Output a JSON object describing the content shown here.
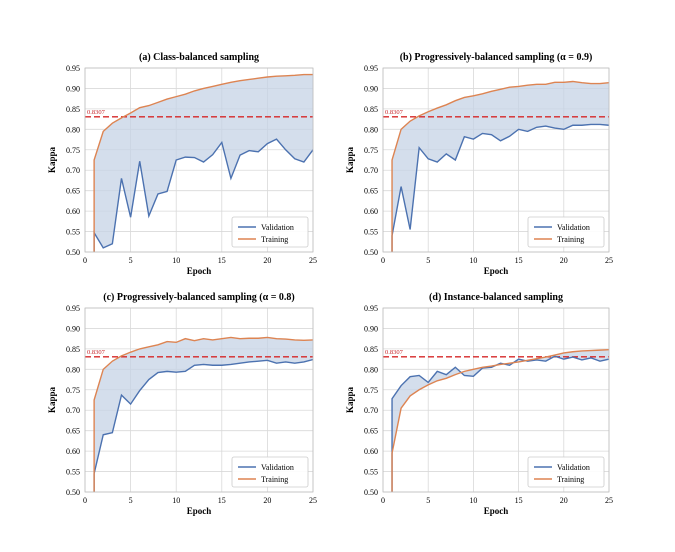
{
  "colors": {
    "validation": "#4c72b0",
    "training": "#dd8452",
    "reference": "#d62728",
    "fill": "#c5d3e6",
    "grid": "#d9d9d9"
  },
  "chart_data": [
    {
      "type": "line",
      "title": "(a) Class-balanced sampling",
      "xlabel": "Epoch",
      "ylabel": "Kappa",
      "xlim": [
        0,
        25
      ],
      "ylim": [
        0.5,
        0.95
      ],
      "xticks": [
        "0",
        "5",
        "10",
        "15",
        "20",
        "25"
      ],
      "yticks": [
        "0.50",
        "0.55",
        "0.60",
        "0.65",
        "0.70",
        "0.75",
        "0.80",
        "0.85",
        "0.90",
        "0.95"
      ],
      "grid": true,
      "legend": "bottom-right",
      "fill_between": true,
      "reference": {
        "value": 0.8307,
        "label": "0.8307"
      },
      "x": [
        1,
        2,
        3,
        4,
        5,
        6,
        7,
        8,
        9,
        10,
        11,
        12,
        13,
        14,
        15,
        16,
        17,
        18,
        19,
        20,
        21,
        22,
        23,
        24,
        25
      ],
      "series": [
        {
          "name": "Validation",
          "values": [
            0.547,
            0.51,
            0.52,
            0.68,
            0.585,
            0.722,
            0.588,
            0.642,
            0.648,
            0.725,
            0.732,
            0.731,
            0.72,
            0.738,
            0.768,
            0.68,
            0.737,
            0.748,
            0.745,
            0.765,
            0.776,
            0.75,
            0.728,
            0.72,
            0.75
          ]
        },
        {
          "name": "Training",
          "values": [
            0.725,
            0.795,
            0.815,
            0.828,
            0.84,
            0.853,
            0.858,
            0.866,
            0.874,
            0.88,
            0.886,
            0.894,
            0.9,
            0.905,
            0.91,
            0.915,
            0.919,
            0.922,
            0.925,
            0.928,
            0.93,
            0.931,
            0.932,
            0.934,
            0.934
          ]
        }
      ]
    },
    {
      "type": "line",
      "title": "(b) Progressively-balanced sampling (α = 0.9)",
      "xlabel": "Epoch",
      "ylabel": "Kappa",
      "xlim": [
        0,
        25
      ],
      "ylim": [
        0.5,
        0.95
      ],
      "xticks": [
        "0",
        "5",
        "10",
        "15",
        "20",
        "25"
      ],
      "yticks": [
        "0.50",
        "0.55",
        "0.60",
        "0.65",
        "0.70",
        "0.75",
        "0.80",
        "0.85",
        "0.90",
        "0.95"
      ],
      "grid": true,
      "legend": "bottom-right",
      "fill_between": true,
      "reference": {
        "value": 0.8307,
        "label": "0.8307"
      },
      "x": [
        1,
        2,
        3,
        4,
        5,
        6,
        7,
        8,
        9,
        10,
        11,
        12,
        13,
        14,
        15,
        16,
        17,
        18,
        19,
        20,
        21,
        22,
        23,
        24,
        25
      ],
      "series": [
        {
          "name": "Validation",
          "values": [
            0.54,
            0.66,
            0.555,
            0.755,
            0.728,
            0.72,
            0.74,
            0.725,
            0.782,
            0.776,
            0.79,
            0.787,
            0.772,
            0.783,
            0.8,
            0.795,
            0.805,
            0.808,
            0.803,
            0.8,
            0.81,
            0.81,
            0.812,
            0.812,
            0.81
          ]
        },
        {
          "name": "Training",
          "values": [
            0.725,
            0.8,
            0.82,
            0.833,
            0.843,
            0.852,
            0.86,
            0.87,
            0.878,
            0.882,
            0.887,
            0.893,
            0.898,
            0.903,
            0.905,
            0.908,
            0.91,
            0.91,
            0.915,
            0.915,
            0.917,
            0.914,
            0.912,
            0.912,
            0.914
          ]
        }
      ]
    },
    {
      "type": "line",
      "title": "(c) Progressively-balanced sampling (α = 0.8)",
      "xlabel": "Epoch",
      "ylabel": "Kappa",
      "xlim": [
        0,
        25
      ],
      "ylim": [
        0.5,
        0.95
      ],
      "xticks": [
        "0",
        "5",
        "10",
        "15",
        "20",
        "25"
      ],
      "yticks": [
        "0.50",
        "0.55",
        "0.60",
        "0.65",
        "0.70",
        "0.75",
        "0.80",
        "0.85",
        "0.90",
        "0.95"
      ],
      "grid": true,
      "legend": "bottom-right",
      "fill_between": true,
      "reference": {
        "value": 0.8307,
        "label": "0.8307"
      },
      "x": [
        1,
        2,
        3,
        4,
        5,
        6,
        7,
        8,
        9,
        10,
        11,
        12,
        13,
        14,
        15,
        16,
        17,
        18,
        19,
        20,
        21,
        22,
        23,
        24,
        25
      ],
      "series": [
        {
          "name": "Validation",
          "values": [
            0.545,
            0.64,
            0.645,
            0.737,
            0.715,
            0.748,
            0.775,
            0.792,
            0.795,
            0.793,
            0.795,
            0.81,
            0.812,
            0.81,
            0.81,
            0.812,
            0.815,
            0.818,
            0.82,
            0.822,
            0.815,
            0.818,
            0.815,
            0.818,
            0.824
          ]
        },
        {
          "name": "Training",
          "values": [
            0.725,
            0.8,
            0.82,
            0.833,
            0.842,
            0.85,
            0.855,
            0.86,
            0.868,
            0.866,
            0.875,
            0.87,
            0.875,
            0.872,
            0.875,
            0.878,
            0.875,
            0.876,
            0.876,
            0.878,
            0.875,
            0.874,
            0.872,
            0.871,
            0.872
          ]
        }
      ]
    },
    {
      "type": "line",
      "title": "(d) Instance-balanced sampling",
      "xlabel": "Epoch",
      "ylabel": "Kappa",
      "xlim": [
        0,
        25
      ],
      "ylim": [
        0.5,
        0.95
      ],
      "xticks": [
        "0",
        "5",
        "10",
        "15",
        "20",
        "25"
      ],
      "yticks": [
        "0.50",
        "0.55",
        "0.60",
        "0.65",
        "0.70",
        "0.75",
        "0.80",
        "0.85",
        "0.90",
        "0.95"
      ],
      "grid": true,
      "legend": "bottom-right",
      "fill_between": true,
      "reference": {
        "value": 0.8307,
        "label": "0.8307"
      },
      "x": [
        1,
        2,
        3,
        4,
        5,
        6,
        7,
        8,
        9,
        10,
        11,
        12,
        13,
        14,
        15,
        16,
        17,
        18,
        19,
        20,
        21,
        22,
        23,
        24,
        25
      ],
      "series": [
        {
          "name": "Validation",
          "values": [
            0.728,
            0.76,
            0.782,
            0.785,
            0.768,
            0.795,
            0.787,
            0.805,
            0.785,
            0.783,
            0.803,
            0.805,
            0.815,
            0.81,
            0.825,
            0.82,
            0.823,
            0.82,
            0.832,
            0.825,
            0.83,
            0.823,
            0.828,
            0.82,
            0.825
          ]
        },
        {
          "name": "Training",
          "values": [
            0.595,
            0.705,
            0.735,
            0.75,
            0.762,
            0.772,
            0.778,
            0.787,
            0.795,
            0.8,
            0.805,
            0.808,
            0.812,
            0.815,
            0.818,
            0.822,
            0.826,
            0.83,
            0.835,
            0.84,
            0.843,
            0.845,
            0.846,
            0.847,
            0.848
          ]
        }
      ]
    }
  ]
}
